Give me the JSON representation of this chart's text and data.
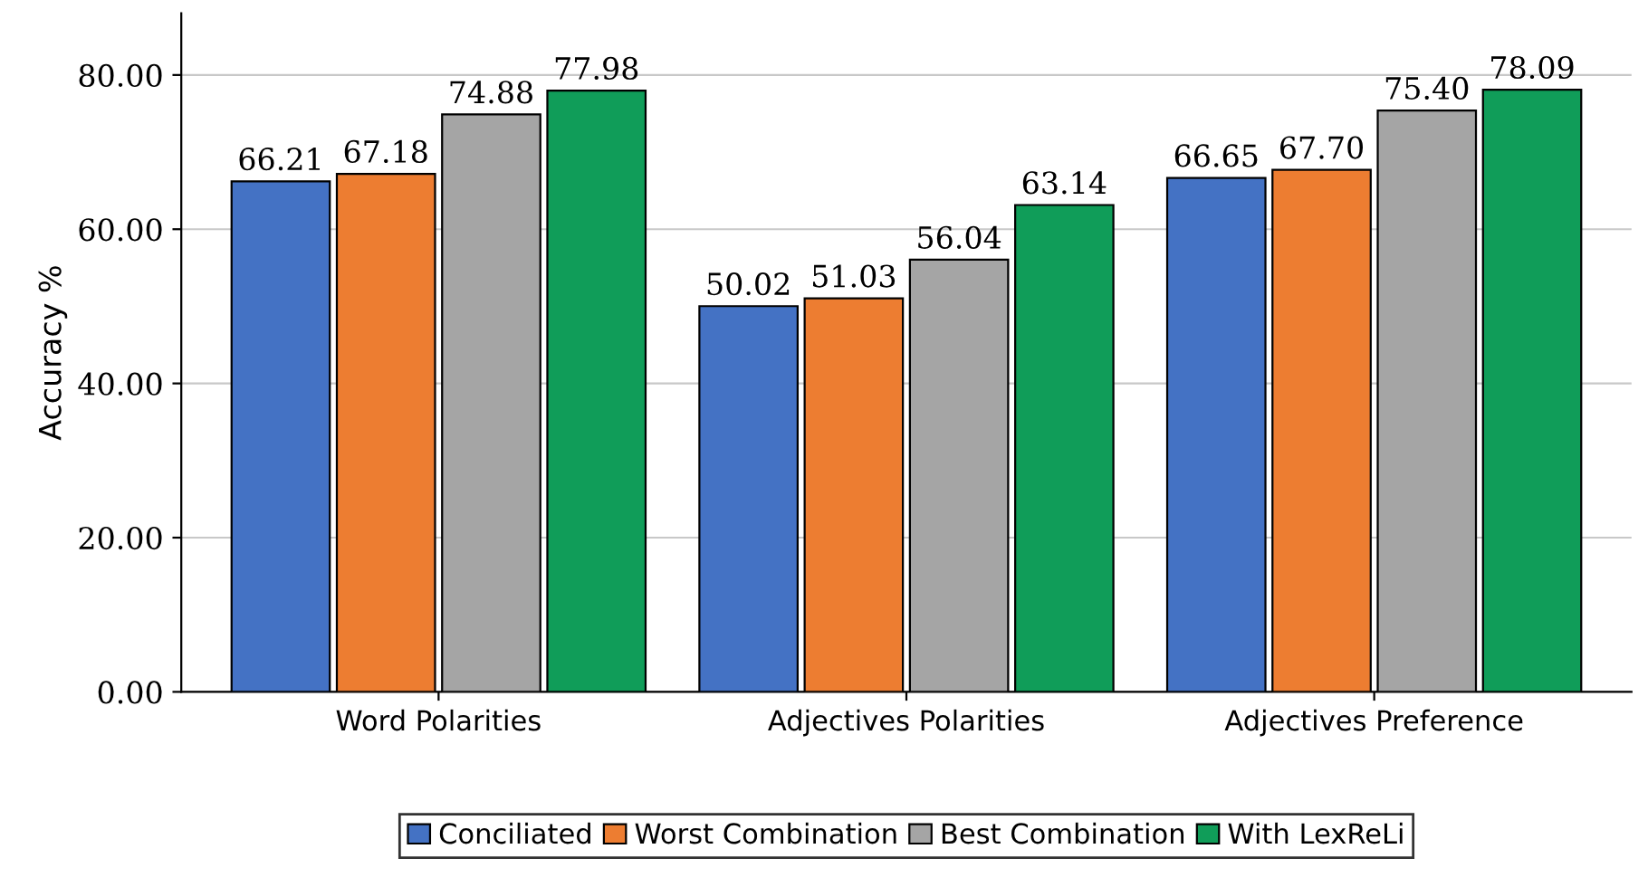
{
  "chart_data": {
    "type": "bar",
    "ylabel": "Accuracy %",
    "categories": [
      "Word Polarities",
      "Adjectives Polarities",
      "Adjectives Preference"
    ],
    "series": [
      {
        "name": "Conciliated",
        "color": "#4472c4",
        "values": [
          66.21,
          50.02,
          66.65
        ],
        "value_labels": [
          "66.21",
          "50.02",
          "66.65"
        ]
      },
      {
        "name": "Worst Combination",
        "color": "#ed7d31",
        "values": [
          67.18,
          51.03,
          67.7
        ],
        "value_labels": [
          "67.18",
          "51.03",
          "67.70"
        ]
      },
      {
        "name": "Best Combination",
        "color": "#a5a5a5",
        "values": [
          74.88,
          56.04,
          75.4
        ],
        "value_labels": [
          "74.88",
          "56.04",
          "75.40"
        ]
      },
      {
        "name": "With LexReLi",
        "color": "#109d59",
        "values": [
          77.98,
          63.14,
          78.09
        ],
        "value_labels": [
          "77.98",
          "63.14",
          "78.09"
        ]
      }
    ],
    "ylim": [
      0,
      88
    ],
    "yticks": [
      {
        "value": 0,
        "label": "0.00"
      },
      {
        "value": 20,
        "label": "20.00"
      },
      {
        "value": 40,
        "label": "40.00"
      },
      {
        "value": 60,
        "label": "60.00"
      },
      {
        "value": 80,
        "label": "80.00"
      }
    ],
    "grid": "y",
    "legend": "bottom"
  }
}
